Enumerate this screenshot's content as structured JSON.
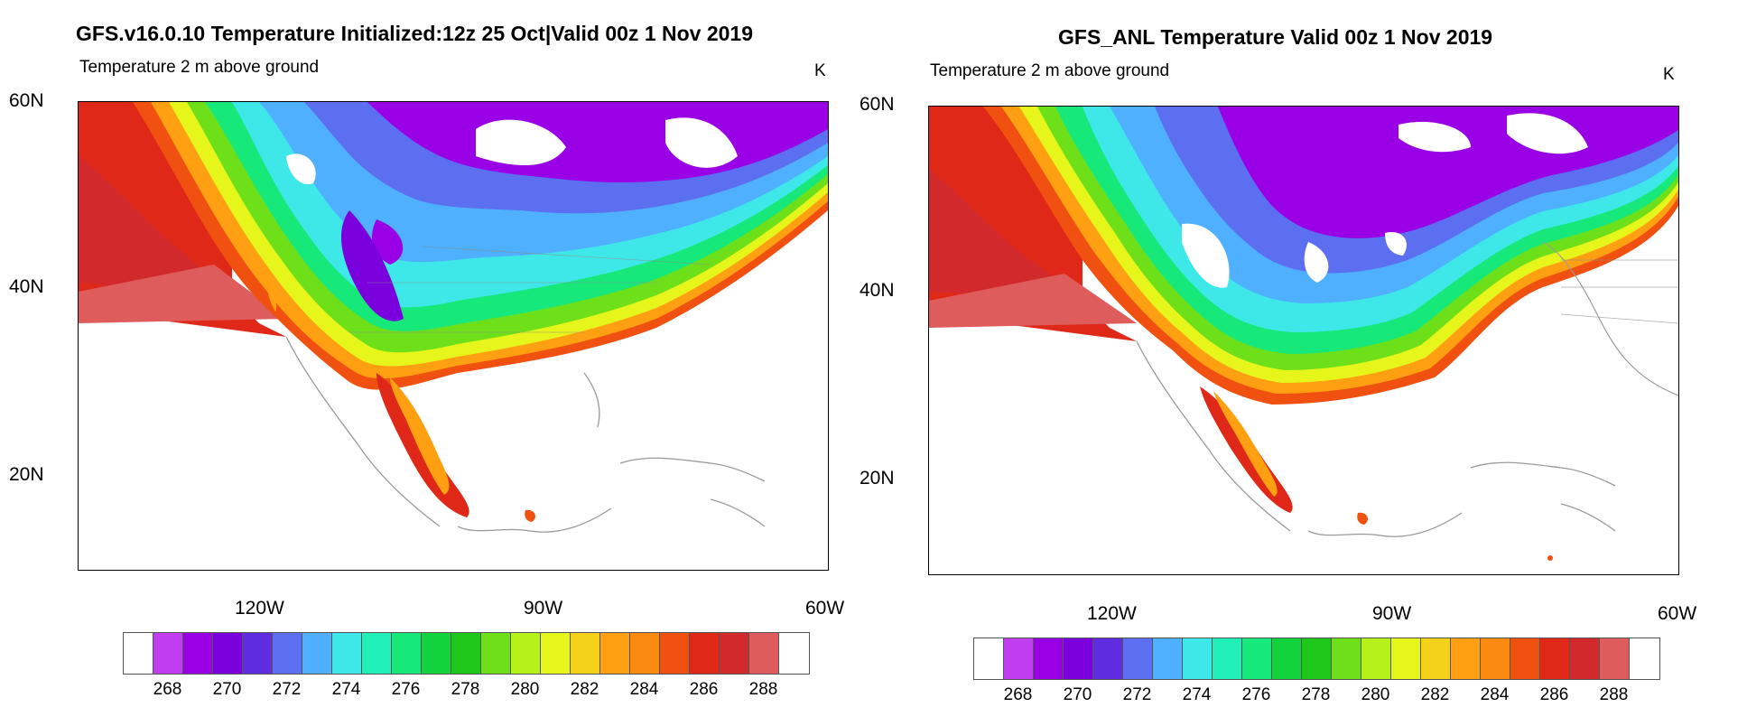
{
  "panels": [
    {
      "title": "GFS.v16.0.10 Temperature Initialized:12z 25 Oct|Valid 00z 1 Nov 2019",
      "subtitle": "Temperature 2 m above ground",
      "unit": "K"
    },
    {
      "title": "GFS_ANL Temperature Valid 00z 1 Nov 2019",
      "subtitle": "Temperature 2 m above ground",
      "unit": "K"
    }
  ],
  "lat_labels": [
    "60N",
    "40N",
    "20N"
  ],
  "lon_labels": [
    "120W",
    "90W",
    "60W"
  ],
  "colorbar": {
    "colors": [
      "#ffffff",
      "#c13ef0",
      "#9a00e6",
      "#7a00dd",
      "#5e2de0",
      "#5b6ff0",
      "#4fb0ff",
      "#3fe8e8",
      "#20f0b8",
      "#16e87a",
      "#12d33c",
      "#1ec81a",
      "#6ee01a",
      "#b6f21a",
      "#e6f51a",
      "#f5d21a",
      "#ffa012",
      "#fb8a10",
      "#f05010",
      "#e02818",
      "#d22a2c",
      "#de5c5c",
      "#ffffff"
    ],
    "tick_labels": [
      "268",
      "270",
      "272",
      "274",
      "276",
      "278",
      "280",
      "282",
      "284",
      "286",
      "288"
    ]
  }
}
